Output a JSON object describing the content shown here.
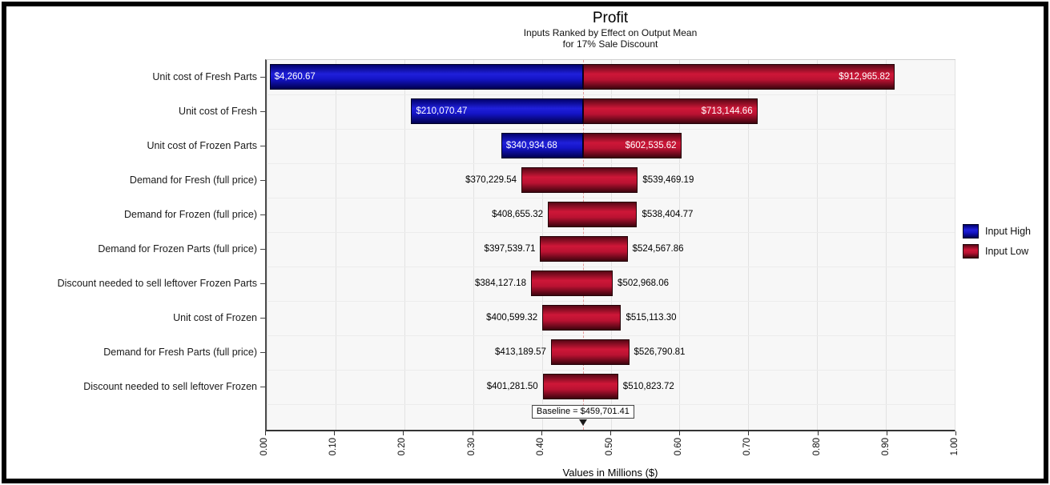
{
  "title": {
    "text": "Profit",
    "subtitle_line1": "Inputs Ranked by Effect on Output Mean",
    "subtitle_line2": "for 17% Sale Discount"
  },
  "legend": {
    "items": [
      {
        "label": "Input High",
        "key": "input_high",
        "color": "#1414c6"
      },
      {
        "label": "Input Low",
        "key": "input_low",
        "color": "#c01434"
      }
    ]
  },
  "chart_data": {
    "type": "bar",
    "subtype": "tornado",
    "orientation": "horizontal",
    "title": "Profit",
    "subtitle_lines": [
      "Inputs Ranked by Effect on Output Mean",
      "for 17% Sale Discount"
    ],
    "xlabel": "Values in Millions ($)",
    "xlim": [
      0,
      1
    ],
    "xticks": [
      "0.00",
      "0.10",
      "0.20",
      "0.30",
      "0.40",
      "0.50",
      "0.60",
      "0.70",
      "0.80",
      "0.90",
      "1.00"
    ],
    "grid": true,
    "legend_position": "right",
    "colors": {
      "input_high": "#1414c6",
      "input_low": "#c01434"
    },
    "baseline": {
      "text": "Baseline = $459,701.41",
      "value": 459701.41
    },
    "rows": [
      {
        "label": "Unit cost of Fresh Parts",
        "low": 4260.67,
        "high": 912965.82,
        "low_text": "$4,260.67",
        "high_text": "$912,965.82",
        "has_input_high_segment": true
      },
      {
        "label": "Unit cost of Fresh",
        "low": 210070.47,
        "high": 713144.66,
        "low_text": "$210,070.47",
        "high_text": "$713,144.66",
        "has_input_high_segment": true
      },
      {
        "label": "Unit cost of Frozen Parts",
        "low": 340934.68,
        "high": 602535.62,
        "low_text": "$340,934.68",
        "high_text": "$602,535.62",
        "has_input_high_segment": true
      },
      {
        "label": "Demand for Fresh (full price)",
        "low": 370229.54,
        "high": 539469.19,
        "low_text": "$370,229.54",
        "high_text": "$539,469.19",
        "has_input_high_segment": false
      },
      {
        "label": "Demand for Frozen (full price)",
        "low": 408655.32,
        "high": 538404.77,
        "low_text": "$408,655.32",
        "high_text": "$538,404.77",
        "has_input_high_segment": false
      },
      {
        "label": "Demand for Frozen Parts (full price)",
        "low": 397539.71,
        "high": 524567.86,
        "low_text": "$397,539.71",
        "high_text": "$524,567.86",
        "has_input_high_segment": false
      },
      {
        "label": "Discount needed to sell leftover Frozen Parts",
        "low": 384127.18,
        "high": 502968.06,
        "low_text": "$384,127.18",
        "high_text": "$502,968.06",
        "has_input_high_segment": false
      },
      {
        "label": "Unit cost of Frozen",
        "low": 400599.32,
        "high": 515113.3,
        "low_text": "$400,599.32",
        "high_text": "$515,113.30",
        "has_input_high_segment": false
      },
      {
        "label": "Demand for Fresh Parts (full price)",
        "low": 413189.57,
        "high": 526790.81,
        "low_text": "$413,189.57",
        "high_text": "$526,790.81",
        "has_input_high_segment": false
      },
      {
        "label": "Discount needed to sell leftover Frozen",
        "low": 401281.5,
        "high": 510823.72,
        "low_text": "$401,281.50",
        "high_text": "$510,823.72",
        "has_input_high_segment": false
      }
    ]
  }
}
